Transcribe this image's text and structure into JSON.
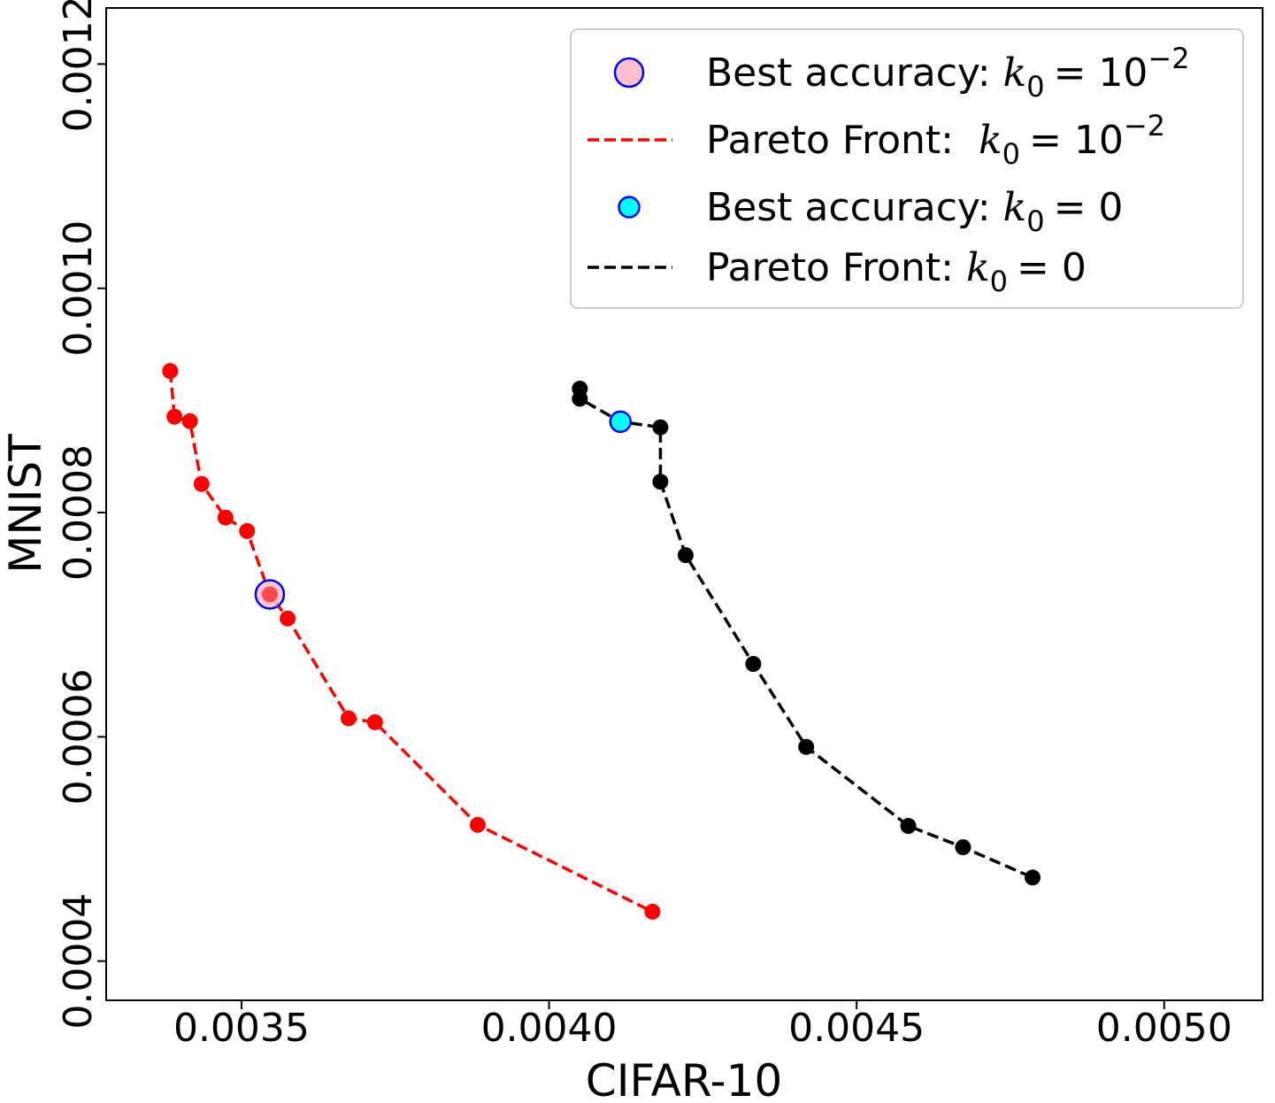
{
  "chart_data": {
    "type": "scatter",
    "title": "",
    "xlabel": "CIFAR-10",
    "ylabel": "MNIST",
    "xlim": [
      0.00328,
      0.00516
    ],
    "ylim": [
      0.000365,
      0.00125
    ],
    "xticks": [
      {
        "value": 0.0035,
        "label": "0.0035"
      },
      {
        "value": 0.004,
        "label": "0.0040"
      },
      {
        "value": 0.0045,
        "label": "0.0045"
      },
      {
        "value": 0.005,
        "label": "0.0050"
      }
    ],
    "yticks": [
      {
        "value": 0.0004,
        "label": "0.0004"
      },
      {
        "value": 0.0006,
        "label": "0.0006"
      },
      {
        "value": 0.0008,
        "label": "0.0008"
      },
      {
        "value": 0.001,
        "label": "0.0010"
      },
      {
        "value": 0.0012,
        "label": "0.0012"
      }
    ],
    "grid": false,
    "legend_position": "top-right",
    "series": [
      {
        "name": "Pareto Front:  k0 = 10^-2",
        "color": "#ff0000",
        "style": "dashed-line-with-dots",
        "x": [
          0.003384,
          0.003391,
          0.003416,
          0.003435,
          0.003474,
          0.003509,
          0.003546,
          0.003575,
          0.003674,
          0.003717,
          0.003884,
          0.004168
        ],
        "y": [
          0.0009262,
          0.0008855,
          0.0008815,
          0.0008255,
          0.0007955,
          0.0007835,
          0.000727,
          0.0007055,
          0.0006165,
          0.000613,
          0.0005215,
          0.000444
        ]
      },
      {
        "name": "Pareto Front: k0 = 0",
        "color": "#000000",
        "style": "dashed-line-with-dots",
        "x": [
          0.00405,
          0.00405,
          0.004116,
          0.004181,
          0.004181,
          0.004222,
          0.004332,
          0.004418,
          0.004584,
          0.004673,
          0.004786
        ],
        "y": [
          0.0009105,
          0.0009015,
          0.000881,
          0.000876,
          0.0008275,
          0.000762,
          0.000665,
          0.000591,
          0.0005205,
          0.0005015,
          0.0004745
        ]
      },
      {
        "name": "Best accuracy: k0 = 10^-2",
        "color": "#ffc0cb",
        "edgecolor": "#0000ff",
        "style": "large-marker",
        "x": [
          0.003546
        ],
        "y": [
          0.000727
        ]
      },
      {
        "name": "Best accuracy: k0 = 0",
        "color": "#00ffff",
        "edgecolor": "#0000ff",
        "style": "medium-marker",
        "x": [
          0.004116
        ],
        "y": [
          0.000881
        ]
      }
    ],
    "legend": [
      {
        "marker": "circle-pink",
        "prefix": "Best accuracy: ",
        "var": "k",
        "sub": "0",
        "rhs": "= 10",
        "sup": "−2"
      },
      {
        "marker": "dash-red",
        "prefix": "Pareto Front:  ",
        "var": "k",
        "sub": "0",
        "rhs": "= 10",
        "sup": "−2"
      },
      {
        "marker": "circle-cyan",
        "prefix": "Best accuracy: ",
        "var": "k",
        "sub": "0",
        "rhs": "= 0",
        "sup": ""
      },
      {
        "marker": "dash-black",
        "prefix": "Pareto Front: ",
        "var": "k",
        "sub": "0",
        "rhs": "= 0",
        "sup": ""
      }
    ]
  }
}
